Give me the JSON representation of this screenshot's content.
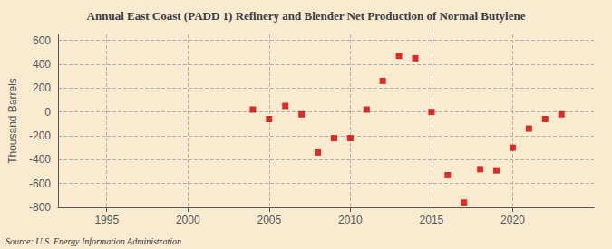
{
  "chart_data": {
    "type": "scatter",
    "title": "Annual East Coast (PADD 1) Refinery and Blender Net Production of Normal Butylene",
    "ylabel": "Thousand Barrels",
    "annotations": [
      "Source: U.S. Energy Information Administration"
    ],
    "x": [
      2004,
      2005,
      2006,
      2007,
      2008,
      2009,
      2010,
      2011,
      2012,
      2013,
      2014,
      2015,
      2016,
      2017,
      2018,
      2019,
      2020,
      2021,
      2022,
      2023
    ],
    "values": [
      20,
      -60,
      50,
      -20,
      -340,
      -220,
      -220,
      20,
      260,
      470,
      450,
      0,
      -530,
      -760,
      -480,
      -490,
      -300,
      -140,
      -60,
      -20
    ],
    "color": "#cc0000",
    "marker": "square",
    "xlim": [
      1992,
      2025
    ],
    "ylim": [
      -800,
      650
    ],
    "xticks": [
      1995,
      2000,
      2005,
      2010,
      2015,
      2020
    ],
    "yticks": [
      -800,
      -600,
      -400,
      -200,
      0,
      200,
      400,
      600
    ],
    "grid": true
  }
}
